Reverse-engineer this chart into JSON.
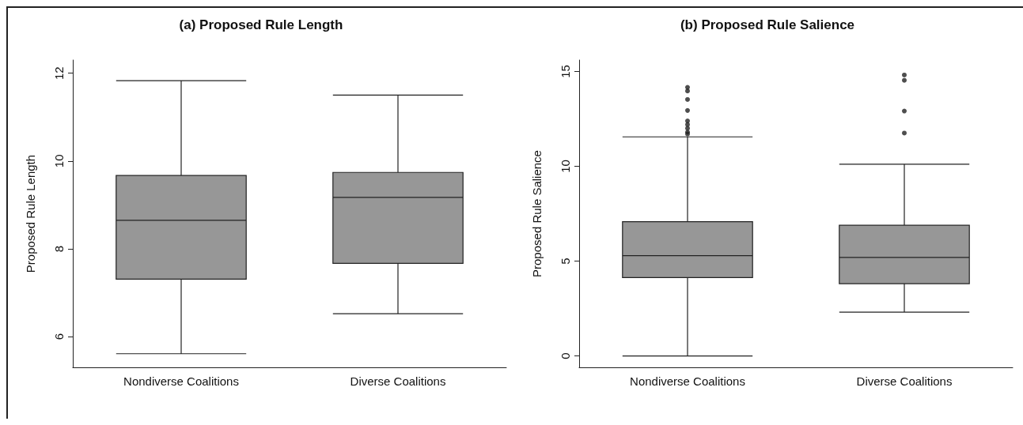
{
  "chart_data": [
    {
      "type": "box",
      "title": "(a) Proposed Rule Length",
      "ylabel": "Proposed Rule Length",
      "categories": [
        "Nondiverse Coalitions",
        "Diverse Coalitions"
      ],
      "color": "#979797",
      "boxes": [
        {
          "low": 5.61,
          "q1": 7.31,
          "median": 8.65,
          "q3": 9.67,
          "high": 11.83
        },
        {
          "low": 6.52,
          "q1": 7.67,
          "median": 9.17,
          "q3": 9.74,
          "high": 11.5
        }
      ],
      "ylim": [
        5.3,
        12.3
      ],
      "yticks": [
        6,
        8,
        10,
        12
      ],
      "grid": false
    },
    {
      "type": "box",
      "title": "(b) Proposed Rule Salience",
      "ylabel": "Proposed Rule Salience",
      "categories": [
        "Nondiverse Coalitions",
        "Diverse Coalitions"
      ],
      "color": "#979797",
      "boxes": [
        {
          "low": 0,
          "q1": 4.13,
          "median": 5.29,
          "q3": 7.08,
          "high": 11.55,
          "outliers": [
            14.16,
            13.97,
            13.52,
            12.94,
            12.39,
            12.2,
            12.0,
            11.8,
            11.7
          ]
        },
        {
          "low": 2.31,
          "q1": 3.81,
          "median": 5.19,
          "q3": 6.89,
          "high": 10.11,
          "outliers": [
            14.81,
            14.53,
            12.91,
            11.75
          ]
        }
      ],
      "ylim": [
        -0.6,
        15.6
      ],
      "yticks": [
        0,
        5,
        10,
        15
      ],
      "grid": false
    }
  ]
}
